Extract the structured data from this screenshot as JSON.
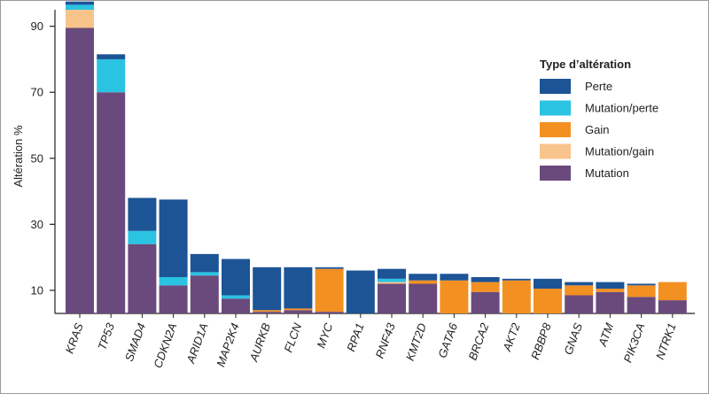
{
  "chart_data": {
    "type": "bar",
    "stacked": true,
    "ylabel": "Altération %",
    "yticks": [
      10,
      30,
      50,
      70,
      90
    ],
    "ylim": [
      3,
      95
    ],
    "categories": [
      "KRAS",
      "TP53",
      "SMAD4",
      "CDKN2A",
      "ARID1A",
      "MAP2K4",
      "AURKB",
      "FLCN",
      "MYC",
      "RPA1",
      "RNF43",
      "KMT2D",
      "GATA6",
      "BRCA2",
      "AKT2",
      "RBBP8",
      "GNAS",
      "ATM",
      "PIK3CA",
      "NTRK1"
    ],
    "legend_title": "Type d’altération",
    "legend_position": "right",
    "stack_order": [
      "Mutation",
      "Mutation/gain",
      "Gain",
      "Mutation/perte",
      "Perte"
    ],
    "legend_order": [
      "Perte",
      "Mutation/perte",
      "Gain",
      "Mutation/gain",
      "Mutation"
    ],
    "series": [
      {
        "name": "Mutation",
        "color": "#6a4a7c",
        "values": [
          86.5,
          67,
          21,
          8.5,
          11.5,
          4.5,
          0.5,
          1,
          0.5,
          0,
          9,
          9,
          0,
          6.5,
          0,
          0,
          5.5,
          6.5,
          5,
          4
        ]
      },
      {
        "name": "Mutation/gain",
        "color": "#f8c48c",
        "values": [
          5.5,
          0,
          0,
          0,
          0,
          0,
          0,
          0,
          0,
          0,
          0.5,
          0,
          0,
          0,
          0,
          0,
          0,
          0,
          0,
          0
        ]
      },
      {
        "name": "Gain",
        "color": "#f39022",
        "values": [
          0,
          0,
          0,
          0,
          0,
          0,
          0.5,
          0.5,
          13,
          0,
          0,
          1,
          10,
          3,
          10,
          7.5,
          3,
          1,
          3.5,
          5.5
        ]
      },
      {
        "name": "Mutation/perte",
        "color": "#2ac3e2",
        "values": [
          1.5,
          10,
          4,
          2.5,
          1,
          1,
          0,
          0,
          0,
          0,
          1,
          0,
          0,
          0,
          0,
          0,
          0,
          0,
          0,
          0
        ]
      },
      {
        "name": "Perte",
        "color": "#1c5496",
        "values": [
          1,
          1.5,
          10,
          23.5,
          5.5,
          11,
          13,
          12.5,
          0.5,
          13,
          3,
          2,
          2,
          1.5,
          0.5,
          3,
          1,
          2,
          0.5,
          0
        ]
      }
    ],
    "grid": false
  }
}
